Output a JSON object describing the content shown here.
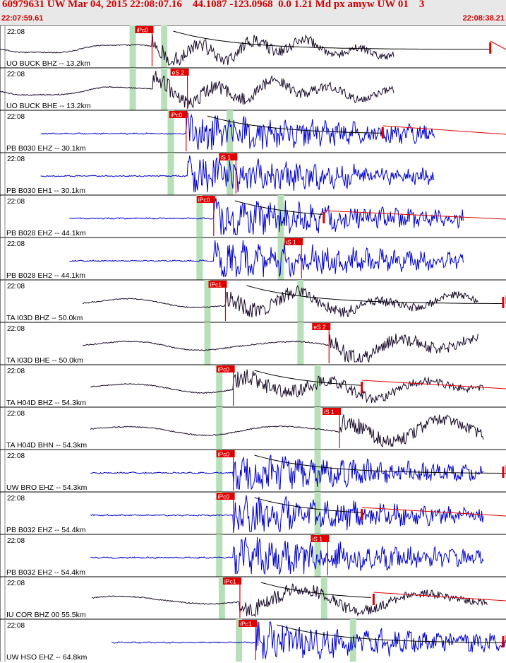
{
  "header": {
    "title": "60979631 UW Mar 04, 2015 22:08:07.16    44.1087 -123.0968  0.0 1.21 Md px amyw UW 01    3",
    "start_time": "22:07:59.61",
    "end_time": "22:08:38.21"
  },
  "colors": {
    "header_text": "#d00000",
    "header_bg": "#e8e8e8",
    "trace_blue": "#0000cc",
    "trace_black": "#1a0a2a",
    "pick": "#e00000",
    "window": "#b8e0b8",
    "coda": "#000000",
    "coda_fit": "#e00000"
  },
  "chart_data": {
    "type": "line",
    "title": "60979631 UW Mar 04, 2015 22:08:07.16    44.1087 -123.0968  0.0 1.21 Md px amyw UW 01    3",
    "x_range": [
      "22:07:59.61",
      "22:08:38.21"
    ],
    "x_unit": "time (s after 22:07:59.61)",
    "x_span_s": 38.6,
    "traces": [
      {
        "label": "UO BUCK BHZ -- 13.2km",
        "time": "22:08",
        "color": "black",
        "start_s": 0,
        "end_s": 30.1,
        "onset_s": 11.6,
        "pick": {
          "label": "iPc0",
          "t_s": 11.6
        },
        "windows_s": [
          10.1,
          12.5
        ],
        "coda": true,
        "duration_mark_s": 37.4
      },
      {
        "label": "UO BUCK BHE -- 13.2km",
        "time": "22:08",
        "color": "black",
        "start_s": 0,
        "end_s": 30.1,
        "onset_s": 11.6,
        "pick": {
          "label": "eS 2",
          "t_s": 14.3
        },
        "windows_s": [
          10.1,
          12.5
        ]
      },
      {
        "label": "PB B030 EHZ -- 30.1km",
        "time": "22:08",
        "color": "blue",
        "start_s": 3.1,
        "end_s": 33.2,
        "onset_s": 14.2,
        "pick": {
          "label": "iPc0",
          "t_s": 14.2
        },
        "windows_s": [
          13.0,
          17.5
        ],
        "coda": true,
        "duration_mark_s": 29.2
      },
      {
        "label": "PB B030 EH1 -- 30.1km",
        "time": "22:08",
        "color": "blue",
        "start_s": 3.1,
        "end_s": 33.2,
        "onset_s": 14.3,
        "pick": {
          "label": "iS 1",
          "t_s": 18.0
        },
        "windows_s": [
          13.0,
          17.5
        ]
      },
      {
        "label": "PB B028 EHZ -- 44.1km",
        "time": "22:08",
        "color": "blue",
        "start_s": 5.3,
        "end_s": 35.4,
        "onset_s": 16.3,
        "pick": {
          "label": "iPc0",
          "t_s": 16.3
        },
        "windows_s": [
          15.2,
          21.4
        ],
        "coda": true,
        "duration_mark_s": 24.7
      },
      {
        "label": "PB B028 EH2 -- 44.1km",
        "time": "22:08",
        "color": "blue",
        "start_s": 5.3,
        "end_s": 35.4,
        "onset_s": 16.3,
        "pick": {
          "label": "iS 1",
          "t_s": 23.0
        },
        "windows_s": [
          15.2,
          21.4
        ]
      },
      {
        "label": "TA I03D BHZ -- 50.0km",
        "time": "22:08",
        "color": "black",
        "start_s": 6.3,
        "end_s": 36.5,
        "onset_s": 17.2,
        "pick": {
          "label": "iPc1",
          "t_s": 17.2
        },
        "windows_s": [
          15.8,
          22.9
        ],
        "coda": true,
        "duration_mark_s": 38.6
      },
      {
        "label": "TA I03D BHE -- 50.0km",
        "time": "22:08",
        "color": "black",
        "start_s": 6.3,
        "end_s": 36.5,
        "onset_s": 25.1,
        "pick": {
          "label": "eS 2",
          "t_s": 25.1
        },
        "windows_s": [
          15.8,
          22.9
        ]
      },
      {
        "label": "TA H04D BHZ -- 54.3km",
        "time": "22:08",
        "color": "black",
        "start_s": 6.9,
        "end_s": 36.9,
        "onset_s": 17.8,
        "pick": {
          "label": "iPc0",
          "t_s": 17.8
        },
        "windows_s": [
          16.7,
          24.2
        ],
        "coda": true,
        "duration_mark_s": 27.6
      },
      {
        "label": "TA H04D BHN -- 54.3km",
        "time": "22:08",
        "color": "black",
        "start_s": 6.9,
        "end_s": 36.9,
        "onset_s": 25.9,
        "pick": {
          "label": "iS 1",
          "t_s": 25.9
        },
        "windows_s": [
          16.7,
          24.2
        ]
      },
      {
        "label": "UW BRO EHZ -- 54.3km",
        "time": "22:08",
        "color": "blue",
        "start_s": 6.9,
        "end_s": 36.9,
        "onset_s": 17.8,
        "pick": {
          "label": "iPc0",
          "t_s": 17.8
        },
        "windows_s": [
          16.7,
          24.2
        ],
        "coda": true,
        "duration_mark_s": 38.6
      },
      {
        "label": "PB B032 EHZ -- 54.4km",
        "time": "22:08",
        "color": "blue",
        "start_s": 6.9,
        "end_s": 36.9,
        "onset_s": 17.8,
        "pick": {
          "label": "iPc0",
          "t_s": 17.8
        },
        "windows_s": [
          16.7,
          24.2
        ],
        "coda": true,
        "duration_mark_s": 27.6
      },
      {
        "label": "PB B032 EH2 -- 54.4km",
        "time": "22:08",
        "color": "blue",
        "start_s": 6.9,
        "end_s": 36.9,
        "onset_s": 17.8,
        "pick": {
          "label": "iS 1",
          "t_s": 25.0
        },
        "windows_s": [
          16.7,
          24.2
        ]
      },
      {
        "label": "IU COR BHZ 00 55.5km",
        "time": "22:08",
        "color": "black",
        "start_s": 7.0,
        "end_s": 37.2,
        "onset_s": 18.3,
        "pick": {
          "label": "iPc1",
          "t_s": 18.3
        },
        "windows_s": [
          16.9,
          24.7
        ],
        "coda": true,
        "duration_mark_s": 28.5
      },
      {
        "label": "UW HSO EHZ -- 64.8km",
        "time": "22:08",
        "color": "blue",
        "start_s": 8.5,
        "end_s": 38.6,
        "onset_s": 19.5,
        "pick": {
          "label": "iPc1",
          "t_s": 19.5
        },
        "windows_s": [
          18.2,
          26.9
        ],
        "coda": true,
        "duration_mark_s": 38.6
      }
    ]
  }
}
